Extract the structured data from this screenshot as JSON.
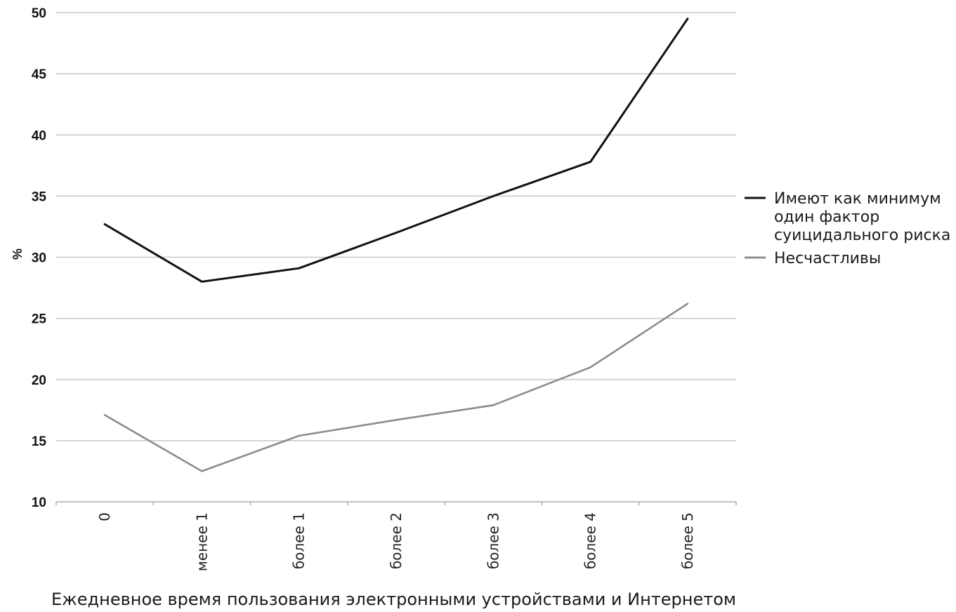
{
  "chart_data": {
    "type": "line",
    "xlabel": "Ежедневное время пользования электронными устройствами и Интернетом",
    "ylabel": "%",
    "ylim": [
      10,
      50
    ],
    "yticks": [
      10,
      15,
      20,
      25,
      30,
      35,
      40,
      45,
      50
    ],
    "categories": [
      "0",
      "менее 1",
      "более 1",
      "более 2",
      "более 3",
      "более 4",
      "более 5"
    ],
    "grid": true,
    "legend_position": "right",
    "series": [
      {
        "name": "Имеют как минимум один фактор суицидального риска",
        "legend_lines": [
          "Имеют как минимум",
          "один фактор",
          "суицидального риска"
        ],
        "color": "#111111",
        "values": [
          32.7,
          28.0,
          29.1,
          32.0,
          35.0,
          37.8,
          49.5
        ]
      },
      {
        "name": "Несчастливы",
        "legend_lines": [
          "Несчастливы"
        ],
        "color": "#8c8c8c",
        "values": [
          17.1,
          12.5,
          15.4,
          16.7,
          17.9,
          21.0,
          26.2
        ]
      }
    ],
    "colors": {
      "grid": "#c8c8c8",
      "axis": "#aaaaaa"
    }
  }
}
